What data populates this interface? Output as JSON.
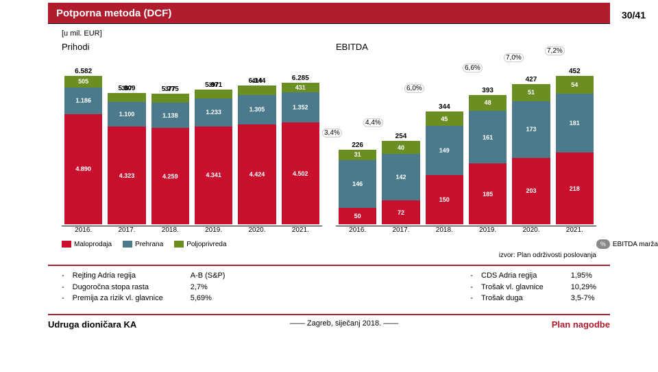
{
  "header": {
    "title": "Potporna metoda (DCF)",
    "page": "30/41"
  },
  "unit": "[u mil. EUR]",
  "colors": {
    "malo": "#c8102e",
    "prehrana": "#4a7a8c",
    "poljo": "#6b8e23",
    "bg": "#ffffff"
  },
  "chartL": {
    "title": "Prihodi",
    "scale": 0.033,
    "years": [
      "2016.",
      "2017.",
      "2018.",
      "2019.",
      "2020.",
      "2021."
    ],
    "totals": [
      "6.582",
      "5.809",
      "5.775",
      "5.971",
      "6.144",
      "6.285"
    ],
    "poljo": [
      "505",
      "387",
      "377",
      "397",
      "414",
      "431"
    ],
    "prehrana": [
      "1.186",
      "1.100",
      "1.138",
      "1.233",
      "1.305",
      "1.352"
    ],
    "malo": [
      "4.890",
      "4.323",
      "4.259",
      "4.341",
      "4.424",
      "4.502"
    ],
    "poljoV": [
      505,
      387,
      377,
      397,
      414,
      431
    ],
    "prehranaV": [
      1186,
      1100,
      1138,
      1233,
      1305,
      1352
    ],
    "maloV": [
      4890,
      4323,
      4259,
      4341,
      4424,
      4502
    ]
  },
  "chartR": {
    "title": "EBITDA",
    "scale": 0.48,
    "years": [
      "2016.",
      "2017.",
      "2018.",
      "2019.",
      "2020.",
      "2021."
    ],
    "totals": [
      "226",
      "254",
      "344",
      "393",
      "427",
      "452"
    ],
    "poljo": [
      "31",
      "40",
      "45",
      "48",
      "51",
      "54"
    ],
    "prehrana": [
      "146",
      "142",
      "149",
      "161",
      "173",
      "181"
    ],
    "malo": [
      "50",
      "72",
      "150",
      "185",
      "203",
      "218"
    ],
    "poljoV": [
      31,
      40,
      45,
      48,
      51,
      54
    ],
    "prehranaV": [
      146,
      142,
      149,
      161,
      173,
      181
    ],
    "maloV": [
      50,
      72,
      150,
      185,
      203,
      218
    ],
    "pct": [
      "3,4%",
      "4,4%",
      "6,0%",
      "6,6%",
      "7,0%",
      "7,2%"
    ]
  },
  "legend": {
    "malo": "Maloprodaja",
    "prehrana": "Prehrana",
    "poljo": "Poljoprivreda",
    "pct": "%",
    "pctLabel": "EBITDA marža"
  },
  "source": "izvor: Plan održivosti poslovanja",
  "notesL": {
    "bullets": [
      "-",
      "-",
      "-"
    ],
    "labels": [
      "Rejting Adria regija",
      "Dugoročna stopa rasta",
      "Premija za rizik vl. glavnice"
    ],
    "vals": [
      "A-B (S&P)",
      "2,7%",
      "5,69%"
    ]
  },
  "notesR": {
    "bullets": [
      "-",
      "-",
      "-"
    ],
    "labels": [
      "CDS Adria regija",
      "Trošak vl. glavnice",
      "Trošak duga"
    ],
    "vals": [
      "1,95%",
      "10,29%",
      "3,5-7%"
    ]
  },
  "footer": {
    "left": "Udruga dioničara KA",
    "center": "—— Zagreb, siječanj 2018. ——",
    "right": "Plan nagodbe"
  }
}
